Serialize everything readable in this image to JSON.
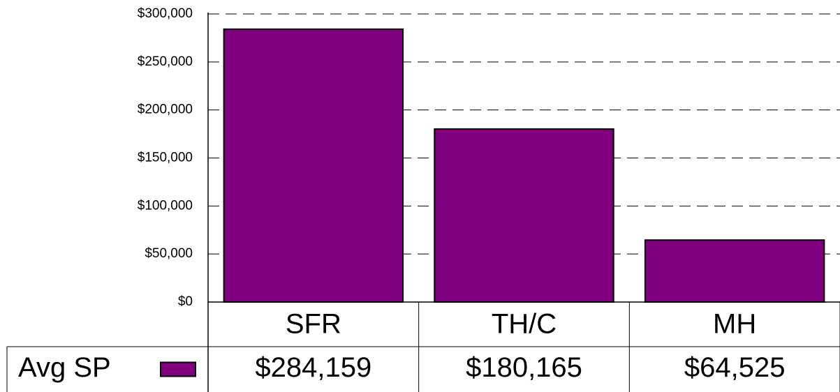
{
  "chart_data": {
    "type": "bar",
    "categories": [
      "SFR",
      "TH/C",
      "MH"
    ],
    "series": [
      {
        "name": "Avg SP",
        "color": "#800080",
        "values": [
          284159,
          180165,
          64525
        ],
        "value_labels": [
          "$284,159",
          "$180,165",
          "$64,525"
        ]
      }
    ],
    "ylim": [
      0,
      300000
    ],
    "yticks": [
      {
        "value": 0,
        "label": "$0"
      },
      {
        "value": 50000,
        "label": "$50,000"
      },
      {
        "value": 100000,
        "label": "$100,000"
      },
      {
        "value": 150000,
        "label": "$150,000"
      },
      {
        "value": 200000,
        "label": "$200,000"
      },
      {
        "value": 250000,
        "label": "$250,000"
      },
      {
        "value": 300000,
        "label": "$300,000"
      }
    ],
    "grid": true
  }
}
